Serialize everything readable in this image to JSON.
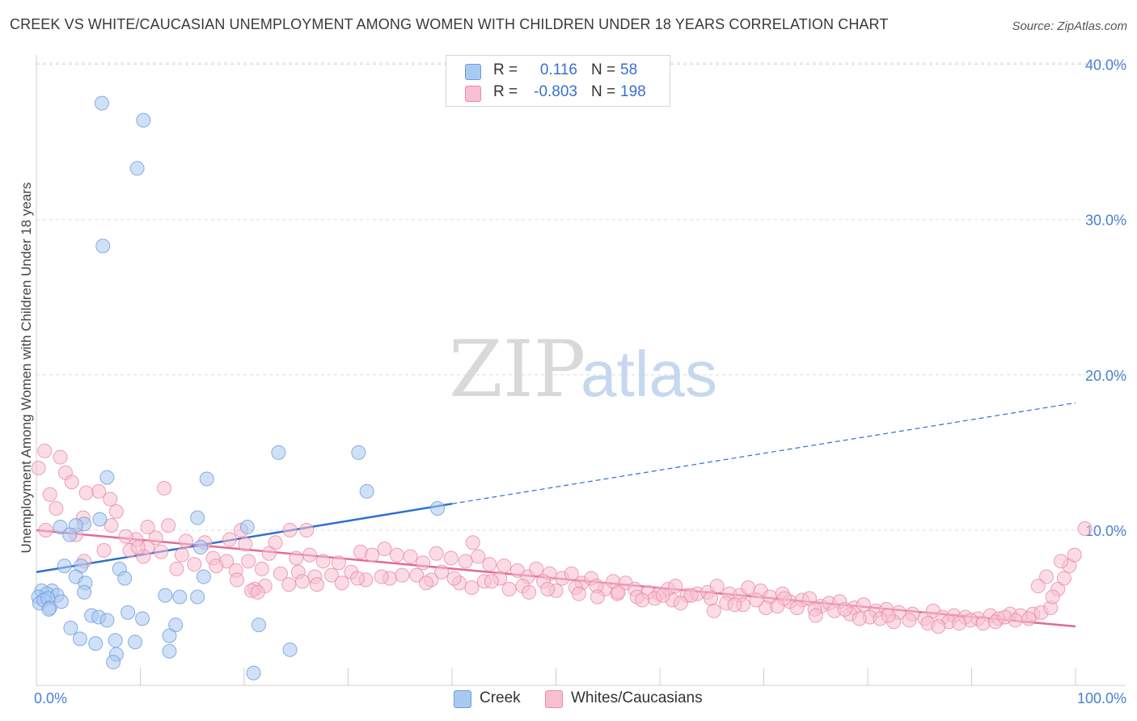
{
  "title": "CREEK VS WHITE/CAUCASIAN UNEMPLOYMENT AMONG WOMEN WITH CHILDREN UNDER 18 YEARS CORRELATION CHART",
  "source": "Source: ZipAtlas.com",
  "watermark": {
    "zip": "ZIP",
    "atlas": "atlas"
  },
  "legend_top": {
    "rows": [
      {
        "r_label": "R =",
        "r_value": "0.116",
        "n_label": "N =",
        "n_value": "58",
        "color": "#a9c9f0",
        "edge": "#6b9be0"
      },
      {
        "r_label": "R =",
        "r_value": "-0.803",
        "n_label": "N =",
        "n_value": "198",
        "color": "#f8bfd0",
        "edge": "#e88aa8"
      }
    ]
  },
  "legend_bottom": [
    {
      "label": "Creek",
      "color": "#a9c9f0",
      "edge": "#6b9be0"
    },
    {
      "label": "Whites/Caucasians",
      "color": "#f8bfd0",
      "edge": "#e88aa8"
    }
  ],
  "chart_data": {
    "type": "scatter",
    "ylabel": "Unemployment Among Women with Children Under 18 years",
    "xlabel": "",
    "x_tick_labels": [
      "0.0%",
      "100.0%"
    ],
    "y_tick_labels": [
      "10.0%",
      "20.0%",
      "30.0%",
      "40.0%"
    ],
    "y_ticks": [
      10,
      20,
      30,
      40
    ],
    "xlim": [
      0,
      100
    ],
    "ylim": [
      0,
      40.5
    ],
    "grid": true,
    "colors": {
      "creek": "#6b9be0",
      "creek_fill": "#a9c9f0",
      "creek_line": "#2e6fd1",
      "white": "#e88aa8",
      "white_fill": "#f8bfd0",
      "white_line": "#e36a93"
    },
    "series": [
      {
        "name": "Creek",
        "r": 0.116,
        "n": 58,
        "trend": {
          "x0": 0,
          "y0": 7.3,
          "x1": 40,
          "y1": 11.7,
          "x_ext": 100,
          "y_ext": 18.2
        },
        "points": [
          [
            6.3,
            37.5
          ],
          [
            10.3,
            36.4
          ],
          [
            9.7,
            33.3
          ],
          [
            6.4,
            28.3
          ],
          [
            23.3,
            15
          ],
          [
            31,
            15
          ],
          [
            16.4,
            13.3
          ],
          [
            6.8,
            13.4
          ],
          [
            31.8,
            12.5
          ],
          [
            38.6,
            11.4
          ],
          [
            15.5,
            10.8
          ],
          [
            6.1,
            10.7
          ],
          [
            20.3,
            10.2
          ],
          [
            4.6,
            10.4
          ],
          [
            3.8,
            10.3
          ],
          [
            2.3,
            10.2
          ],
          [
            3.2,
            9.7
          ],
          [
            15.8,
            8.9
          ],
          [
            4.3,
            7.7
          ],
          [
            8.0,
            7.5
          ],
          [
            2.7,
            7.7
          ],
          [
            3.8,
            7.0
          ],
          [
            16.1,
            7.0
          ],
          [
            8.5,
            6.9
          ],
          [
            4.7,
            6.6
          ],
          [
            4.6,
            6.0
          ],
          [
            1.5,
            6.1
          ],
          [
            12.4,
            5.8
          ],
          [
            0.5,
            6.1
          ],
          [
            1.0,
            5.9
          ],
          [
            2.0,
            5.8
          ],
          [
            0.2,
            5.7
          ],
          [
            0.3,
            5.3
          ],
          [
            0.7,
            5.5
          ],
          [
            1.1,
            5.6
          ],
          [
            2.4,
            5.4
          ],
          [
            13.8,
            5.7
          ],
          [
            15.5,
            5.7
          ],
          [
            1.3,
            5.0
          ],
          [
            8.8,
            4.7
          ],
          [
            5.3,
            4.5
          ],
          [
            6.0,
            4.4
          ],
          [
            6.8,
            4.2
          ],
          [
            10.2,
            4.3
          ],
          [
            1.2,
            4.9
          ],
          [
            3.3,
            3.7
          ],
          [
            13.4,
            3.9
          ],
          [
            21.4,
            3.9
          ],
          [
            4.2,
            3.0
          ],
          [
            12.8,
            3.2
          ],
          [
            7.6,
            2.9
          ],
          [
            5.7,
            2.7
          ],
          [
            9.5,
            2.8
          ],
          [
            12.8,
            2.2
          ],
          [
            24.4,
            2.3
          ],
          [
            7.7,
            2.0
          ],
          [
            7.4,
            1.5
          ],
          [
            20.9,
            0.8
          ]
        ]
      },
      {
        "name": "Whites/Caucasians",
        "r": -0.803,
        "n": 198,
        "trend": {
          "x0": 0,
          "y0": 10.0,
          "x1": 100,
          "y1": 3.8
        },
        "points": [
          [
            0.2,
            14.0
          ],
          [
            0.8,
            15.1
          ],
          [
            2.3,
            14.7
          ],
          [
            1.3,
            12.3
          ],
          [
            2.8,
            13.7
          ],
          [
            3.4,
            13.1
          ],
          [
            6.0,
            12.5
          ],
          [
            4.8,
            12.4
          ],
          [
            12.3,
            12.7
          ],
          [
            1.9,
            11.4
          ],
          [
            4.5,
            10.8
          ],
          [
            7.7,
            11.2
          ],
          [
            7.1,
            12.0
          ],
          [
            7.2,
            10.3
          ],
          [
            10.7,
            10.2
          ],
          [
            12.7,
            10.3
          ],
          [
            19.7,
            10.0
          ],
          [
            24.4,
            10.0
          ],
          [
            3.8,
            9.7
          ],
          [
            9.6,
            9.4
          ],
          [
            10.7,
            8.9
          ],
          [
            11.5,
            9.5
          ],
          [
            8.6,
            9.6
          ],
          [
            14.4,
            9.3
          ],
          [
            16.2,
            9.2
          ],
          [
            18.6,
            9.4
          ],
          [
            20.1,
            9.1
          ],
          [
            23.0,
            9.2
          ],
          [
            9.0,
            8.7
          ],
          [
            10.3,
            8.3
          ],
          [
            12.0,
            8.6
          ],
          [
            14.0,
            8.4
          ],
          [
            17.0,
            8.2
          ],
          [
            18.3,
            8.0
          ],
          [
            20.4,
            8.0
          ],
          [
            22.4,
            8.5
          ],
          [
            25.0,
            8.2
          ],
          [
            26.3,
            8.4
          ],
          [
            27.6,
            8.0
          ],
          [
            29.1,
            7.9
          ],
          [
            31.2,
            8.6
          ],
          [
            32.3,
            8.4
          ],
          [
            33.5,
            8.8
          ],
          [
            34.7,
            8.4
          ],
          [
            36.0,
            8.3
          ],
          [
            37.2,
            7.9
          ],
          [
            38.5,
            8.5
          ],
          [
            39.9,
            8.2
          ],
          [
            41.3,
            8.0
          ],
          [
            42.5,
            8.3
          ],
          [
            42.0,
            9.2
          ],
          [
            43.6,
            7.8
          ],
          [
            45.0,
            7.7
          ],
          [
            46.3,
            7.4
          ],
          [
            47.3,
            7.0
          ],
          [
            48.1,
            7.5
          ],
          [
            49.4,
            7.2
          ],
          [
            50.6,
            6.9
          ],
          [
            51.5,
            7.2
          ],
          [
            52.5,
            6.6
          ],
          [
            53.4,
            6.9
          ],
          [
            54.7,
            6.2
          ],
          [
            55.5,
            6.7
          ],
          [
            56.7,
            6.6
          ],
          [
            57.6,
            6.2
          ],
          [
            58.9,
            6.0
          ],
          [
            59.9,
            5.9
          ],
          [
            60.8,
            6.2
          ],
          [
            61.5,
            6.4
          ],
          [
            62.6,
            5.8
          ],
          [
            63.6,
            5.9
          ],
          [
            64.6,
            6.0
          ],
          [
            65.5,
            6.4
          ],
          [
            66.7,
            5.9
          ],
          [
            67.7,
            5.8
          ],
          [
            68.5,
            6.3
          ],
          [
            69.7,
            6.1
          ],
          [
            70.6,
            5.7
          ],
          [
            71.8,
            5.9
          ],
          [
            72.5,
            5.4
          ],
          [
            73.7,
            5.5
          ],
          [
            74.4,
            5.6
          ],
          [
            75.5,
            5.1
          ],
          [
            76.3,
            5.3
          ],
          [
            77.3,
            5.4
          ],
          [
            78.7,
            5.0
          ],
          [
            79.6,
            5.2
          ],
          [
            80.8,
            4.8
          ],
          [
            81.8,
            4.9
          ],
          [
            83.0,
            4.7
          ],
          [
            84.3,
            4.6
          ],
          [
            85.5,
            4.3
          ],
          [
            86.3,
            4.8
          ],
          [
            87.2,
            4.4
          ],
          [
            88.3,
            4.5
          ],
          [
            89.4,
            4.4
          ],
          [
            90.6,
            4.3
          ],
          [
            91.8,
            4.5
          ],
          [
            92.6,
            4.3
          ],
          [
            93.7,
            4.6
          ],
          [
            94.7,
            4.5
          ],
          [
            95.9,
            4.6
          ],
          [
            96.7,
            4.7
          ],
          [
            97.6,
            5.0
          ],
          [
            98.3,
            6.2
          ],
          [
            98.9,
            6.9
          ],
          [
            97.2,
            7.0
          ],
          [
            96.4,
            6.4
          ],
          [
            97.8,
            5.7
          ],
          [
            99.4,
            7.7
          ],
          [
            99.9,
            8.4
          ],
          [
            100.9,
            10.1
          ],
          [
            98.6,
            8.0
          ],
          [
            0.9,
            10.0
          ],
          [
            4.6,
            8.0
          ],
          [
            6.5,
            8.7
          ],
          [
            9.8,
            8.9
          ],
          [
            13.5,
            7.5
          ],
          [
            15.2,
            7.8
          ],
          [
            17.3,
            7.7
          ],
          [
            19.2,
            7.4
          ],
          [
            21.7,
            7.5
          ],
          [
            23.5,
            7.2
          ],
          [
            25.2,
            7.3
          ],
          [
            26.8,
            7.0
          ],
          [
            28.4,
            7.1
          ],
          [
            30.3,
            7.3
          ],
          [
            31.7,
            6.8
          ],
          [
            34.0,
            6.9
          ],
          [
            36.6,
            7.1
          ],
          [
            38.0,
            6.8
          ],
          [
            40.7,
            6.6
          ],
          [
            43.1,
            6.7
          ],
          [
            44.6,
            6.9
          ],
          [
            46.8,
            6.4
          ],
          [
            48.8,
            6.7
          ],
          [
            50.0,
            6.1
          ],
          [
            51.9,
            6.3
          ],
          [
            53.9,
            6.4
          ],
          [
            55.9,
            5.9
          ],
          [
            57.8,
            5.7
          ],
          [
            59.5,
            5.6
          ],
          [
            61.2,
            5.5
          ],
          [
            63.0,
            5.8
          ],
          [
            64.9,
            5.6
          ],
          [
            66.4,
            5.3
          ],
          [
            68.0,
            5.2
          ],
          [
            70.2,
            5.0
          ],
          [
            71.3,
            5.1
          ],
          [
            73.2,
            5.0
          ],
          [
            74.9,
            4.9
          ],
          [
            76.8,
            4.8
          ],
          [
            78.3,
            4.6
          ],
          [
            80.2,
            4.4
          ],
          [
            81.2,
            4.3
          ],
          [
            82.5,
            4.1
          ],
          [
            84.0,
            4.2
          ],
          [
            85.8,
            4.0
          ],
          [
            87.8,
            4.1
          ],
          [
            89.9,
            4.2
          ],
          [
            91.1,
            4.0
          ],
          [
            92.3,
            4.1
          ],
          [
            94.2,
            4.2
          ],
          [
            95.5,
            4.3
          ],
          [
            93.2,
            4.4
          ],
          [
            88.8,
            4.0
          ],
          [
            86.8,
            3.8
          ],
          [
            82.0,
            4.5
          ],
          [
            79.2,
            4.3
          ],
          [
            77.8,
            4.9
          ],
          [
            75.0,
            4.5
          ],
          [
            72.0,
            5.6
          ],
          [
            69.3,
            5.5
          ],
          [
            67.2,
            5.2
          ],
          [
            65.2,
            4.8
          ],
          [
            62.0,
            5.3
          ],
          [
            60.3,
            5.8
          ],
          [
            58.3,
            5.5
          ],
          [
            56.0,
            6.0
          ],
          [
            54.0,
            5.7
          ],
          [
            52.2,
            5.9
          ],
          [
            49.2,
            6.2
          ],
          [
            47.4,
            6.0
          ],
          [
            45.5,
            6.2
          ],
          [
            43.8,
            6.7
          ],
          [
            41.9,
            6.3
          ],
          [
            40.2,
            6.9
          ],
          [
            39.0,
            7.3
          ],
          [
            37.5,
            6.6
          ],
          [
            35.2,
            7.1
          ],
          [
            33.2,
            7.0
          ],
          [
            30.9,
            6.9
          ],
          [
            29.4,
            6.6
          ],
          [
            27.0,
            6.5
          ],
          [
            25.6,
            6.7
          ],
          [
            24.3,
            6.5
          ],
          [
            22.0,
            6.4
          ],
          [
            21.0,
            6.2
          ],
          [
            20.7,
            6.1
          ],
          [
            21.3,
            6.0
          ],
          [
            19.3,
            6.8
          ],
          [
            26.0,
            10.0
          ]
        ]
      }
    ]
  }
}
